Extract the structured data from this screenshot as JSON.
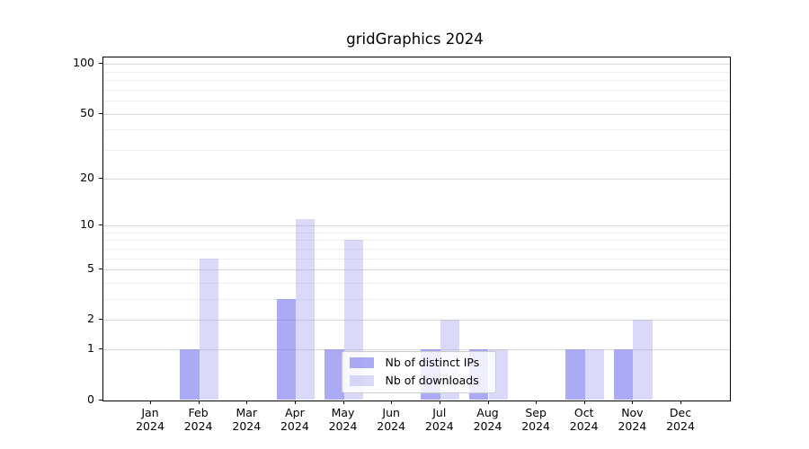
{
  "figure": {
    "background": "#ffffff",
    "axis_color": "#000000",
    "text_color": "#000000"
  },
  "chart_data": {
    "type": "bar",
    "title": "gridGraphics 2024",
    "categories": [
      "Jan 2024",
      "Feb 2024",
      "Mar 2024",
      "Apr 2024",
      "May 2024",
      "Jun 2024",
      "Jul 2024",
      "Aug 2024",
      "Sep 2024",
      "Oct 2024",
      "Nov 2024",
      "Dec 2024"
    ],
    "series": [
      {
        "name": "Nb of distinct IPs",
        "color": "#7373ee",
        "alpha": 0.6,
        "values": [
          0,
          1,
          0,
          3,
          1,
          0,
          1,
          1,
          0,
          1,
          1,
          0
        ]
      },
      {
        "name": "Nb of downloads",
        "color": "#a2a2ee",
        "alpha": 0.4,
        "values": [
          0,
          6,
          0,
          11,
          8,
          0,
          2,
          1,
          0,
          1,
          2,
          0
        ]
      }
    ],
    "y_axis": {
      "scale": "log1p",
      "ylim": [
        0,
        110
      ],
      "major_ticks": [
        0,
        1,
        2,
        5,
        10,
        20,
        50,
        100
      ],
      "minor_gridlines": [
        3,
        4,
        6,
        7,
        8,
        9,
        30,
        40,
        60,
        70,
        80,
        90
      ]
    },
    "x_axis": {
      "tick_label_lines": 2
    },
    "grid": {
      "enabled": true,
      "major_color": "#d9d9d9",
      "minor_color": "#efefef"
    },
    "legend": {
      "position": "lower-center-inside",
      "frame_alpha": 0.8,
      "border_color": "#cccccc"
    }
  }
}
